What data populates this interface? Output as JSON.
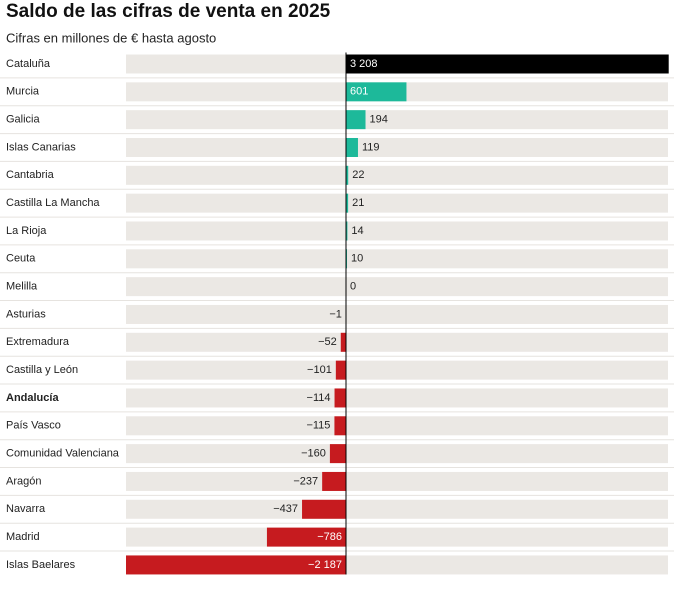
{
  "chart_data": {
    "type": "diverging-bar",
    "title": "Saldo de las cifras de venta en 2025",
    "subtitle": "Cifras en millones de € hasta agosto",
    "categories": [
      "Cataluña",
      "Murcia",
      "Galicia",
      "Islas Canarias",
      "Cantabria",
      "Castilla La Mancha",
      "La Rioja",
      "Ceuta",
      "Melilla",
      "Asturias",
      "Extremadura",
      "Castilla y León",
      "Andalucía",
      "País Vasco",
      "Comunidad Valenciana",
      "Aragón",
      "Navarra",
      "Madrid",
      "Islas Baelares"
    ],
    "values": [
      3208,
      601,
      194,
      119,
      22,
      21,
      14,
      10,
      0,
      -1,
      -52,
      -101,
      -114,
      -115,
      -160,
      -237,
      -437,
      -786,
      -2187
    ],
    "value_labels": [
      "3 208",
      "601",
      "194",
      "119",
      "22",
      "21",
      "14",
      "10",
      "0",
      "−1",
      "−52",
      "−101",
      "−114",
      "−115",
      "−160",
      "−237",
      "−437",
      "−786",
      "−2 187"
    ],
    "bar_colors": [
      "#000000",
      "#1db99a",
      "#1db99a",
      "#1db99a",
      "#1db99a",
      "#1db99a",
      "#1db99a",
      "#1db99a",
      "#1db99a",
      "#c61b1f",
      "#c61b1f",
      "#c61b1f",
      "#c61b1f",
      "#c61b1f",
      "#c61b1f",
      "#c61b1f",
      "#c61b1f",
      "#c61b1f",
      "#c61b1f"
    ],
    "bold_category_index": 12,
    "xlim": [
      -2187,
      3201
    ]
  }
}
